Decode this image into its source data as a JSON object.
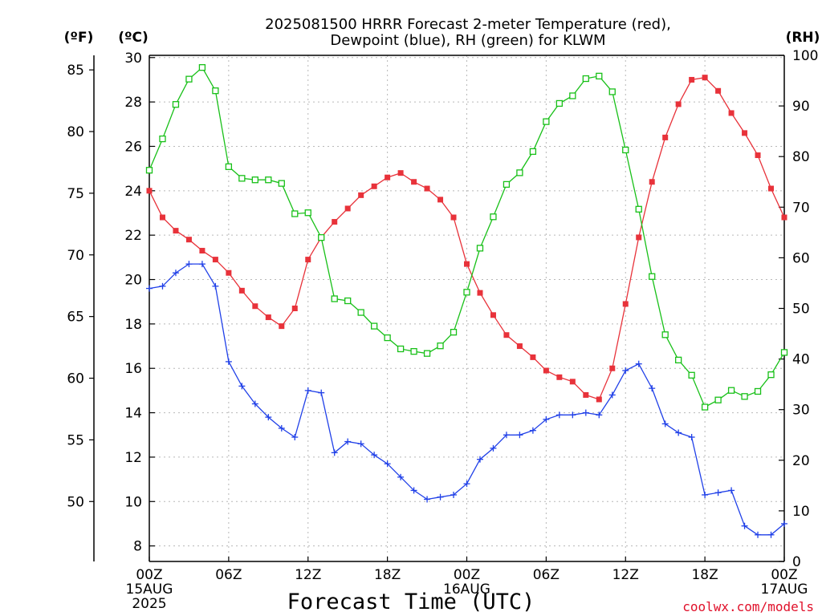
{
  "chart_data": {
    "type": "line",
    "title_lines": [
      "2025081500 HRRR Forecast 2-meter Temperature (red),",
      "Dewpoint (blue), RH (green) for KLWM"
    ],
    "xlabel": "Forecast Time (UTC)",
    "credit": "coolwx.com/models",
    "units": {
      "fahrenheit": "(ºF)",
      "celsius": "(ºC)",
      "rh": "(RH)"
    },
    "x_range": [
      0,
      48
    ],
    "x_ticks": [
      {
        "x": 0,
        "lines": [
          "00Z",
          "15AUG",
          "2025"
        ]
      },
      {
        "x": 6,
        "lines": [
          "06Z"
        ]
      },
      {
        "x": 12,
        "lines": [
          "12Z"
        ]
      },
      {
        "x": 18,
        "lines": [
          "18Z"
        ]
      },
      {
        "x": 24,
        "lines": [
          "00Z",
          "16AUG"
        ]
      },
      {
        "x": 30,
        "lines": [
          "06Z"
        ]
      },
      {
        "x": 36,
        "lines": [
          "12Z"
        ]
      },
      {
        "x": 42,
        "lines": [
          "18Z"
        ]
      },
      {
        "x": 48,
        "lines": [
          "00Z",
          "17AUG"
        ]
      }
    ],
    "celsius_axis": {
      "range": [
        7.3,
        30.1
      ],
      "ticks": [
        8,
        10,
        12,
        14,
        16,
        18,
        20,
        22,
        24,
        26,
        28,
        30
      ]
    },
    "fahrenheit_ticks": [
      50,
      55,
      60,
      65,
      70,
      75,
      80,
      85
    ],
    "rh_axis": {
      "range": [
        0,
        100
      ],
      "ticks": [
        0,
        10,
        20,
        30,
        40,
        50,
        60,
        70,
        80,
        90,
        100
      ]
    },
    "grid": true,
    "series": [
      {
        "name": "Temperature",
        "unit": "C",
        "color": "#e8323a",
        "marker": "filled-square",
        "x": [
          0,
          1,
          2,
          3,
          4,
          5,
          6,
          7,
          8,
          9,
          10,
          11,
          12,
          13,
          14,
          15,
          16,
          17,
          18,
          19,
          20,
          21,
          22,
          23,
          24,
          25,
          26,
          27,
          28,
          29,
          30,
          31,
          32,
          33,
          34,
          35,
          36,
          37,
          38,
          39,
          40,
          41,
          42,
          43,
          44,
          45,
          46,
          47,
          48
        ],
        "values": [
          24.0,
          22.8,
          22.2,
          21.8,
          21.3,
          20.9,
          20.3,
          19.5,
          18.8,
          18.3,
          17.9,
          18.7,
          20.9,
          21.9,
          22.6,
          23.2,
          23.8,
          24.2,
          24.6,
          24.8,
          24.4,
          24.1,
          23.6,
          22.8,
          20.7,
          19.4,
          18.4,
          17.5,
          17.0,
          16.5,
          15.9,
          15.6,
          15.4,
          14.8,
          14.6,
          16.0,
          18.9,
          21.9,
          24.4,
          26.4,
          27.9,
          29.0,
          29.1,
          28.5,
          27.5,
          26.6,
          25.6,
          24.1,
          22.8
        ]
      },
      {
        "name": "Dewpoint",
        "unit": "C",
        "color": "#2040e8",
        "marker": "plus",
        "x": [
          0,
          1,
          2,
          3,
          4,
          5,
          6,
          7,
          8,
          9,
          10,
          11,
          12,
          13,
          14,
          15,
          16,
          17,
          18,
          19,
          20,
          21,
          22,
          23,
          24,
          25,
          26,
          27,
          28,
          29,
          30,
          31,
          32,
          33,
          34,
          35,
          36,
          37,
          38,
          39,
          40,
          41,
          42,
          43,
          44,
          45,
          46,
          47,
          48
        ],
        "values": [
          19.6,
          19.7,
          20.3,
          20.7,
          20.7,
          19.7,
          16.3,
          15.2,
          14.4,
          13.8,
          13.3,
          12.9,
          15.0,
          14.9,
          12.2,
          12.7,
          12.6,
          12.1,
          11.7,
          11.1,
          10.5,
          10.1,
          10.2,
          10.3,
          10.8,
          11.9,
          12.4,
          13.0,
          13.0,
          13.2,
          13.7,
          13.9,
          13.9,
          14.0,
          13.9,
          14.8,
          15.9,
          16.2,
          15.1,
          13.5,
          13.1,
          12.9,
          10.3,
          10.4,
          10.5,
          8.9,
          8.5,
          8.5,
          9.0
        ]
      },
      {
        "name": "RH",
        "unit": "%",
        "color": "#18c018",
        "marker": "open-square",
        "x": [
          0,
          1,
          2,
          3,
          4,
          5,
          6,
          7,
          8,
          9,
          10,
          11,
          12,
          13,
          14,
          15,
          16,
          17,
          18,
          19,
          20,
          21,
          22,
          23,
          24,
          25,
          26,
          27,
          28,
          29,
          30,
          31,
          32,
          33,
          34,
          35,
          36,
          37,
          38,
          39,
          40,
          41,
          42,
          43,
          44,
          45,
          46,
          47,
          48
        ],
        "values": [
          77.3,
          83.5,
          90.3,
          95.3,
          97.6,
          93.0,
          78.0,
          75.7,
          75.4,
          75.4,
          74.7,
          68.7,
          68.9,
          64.0,
          51.9,
          51.5,
          49.2,
          46.5,
          44.2,
          42.0,
          41.5,
          41.1,
          42.6,
          45.3,
          53.2,
          61.9,
          68.1,
          74.5,
          76.8,
          81.0,
          86.9,
          90.5,
          92.0,
          95.4,
          95.9,
          92.8,
          81.3,
          69.6,
          56.3,
          44.8,
          39.8,
          36.8,
          30.5,
          31.9,
          33.8,
          32.6,
          33.6,
          36.9,
          41.3
        ]
      }
    ]
  }
}
